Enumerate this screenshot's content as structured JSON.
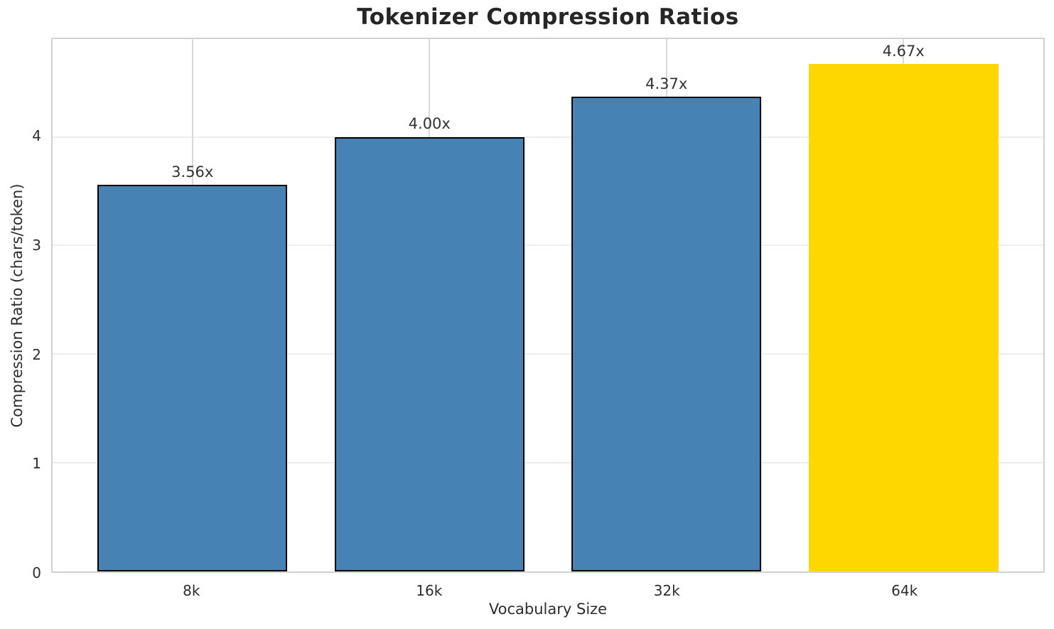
{
  "chart_data": {
    "type": "bar",
    "title": "Tokenizer Compression Ratios",
    "xlabel": "Vocabulary Size",
    "ylabel": "Compression Ratio (chars/token)",
    "categories": [
      "8k",
      "16k",
      "32k",
      "64k"
    ],
    "values": [
      3.56,
      4.0,
      4.37,
      4.67
    ],
    "bar_labels": [
      "3.56x",
      "4.00x",
      "4.37x",
      "4.67x"
    ],
    "bar_colors": [
      "#4682B4",
      "#4682B4",
      "#4682B4",
      "#FFD700"
    ],
    "bar_edge_colors": [
      "#000000",
      "#000000",
      "#000000",
      "none"
    ],
    "ylim": [
      0,
      4.9
    ],
    "yticks": [
      0,
      1,
      2,
      3,
      4
    ],
    "grid": true,
    "legend": false
  },
  "colors": {
    "bar_default": "#4682B4",
    "bar_highlight": "#FFD700",
    "bar_edge": "#000000",
    "grid_horizontal": "#ededed",
    "grid_vertical": "#d9d9d9",
    "spine": "#d2d2d2",
    "tick_text": "#2e2e2e",
    "label_text": "#333333",
    "title_text": "#262626"
  }
}
